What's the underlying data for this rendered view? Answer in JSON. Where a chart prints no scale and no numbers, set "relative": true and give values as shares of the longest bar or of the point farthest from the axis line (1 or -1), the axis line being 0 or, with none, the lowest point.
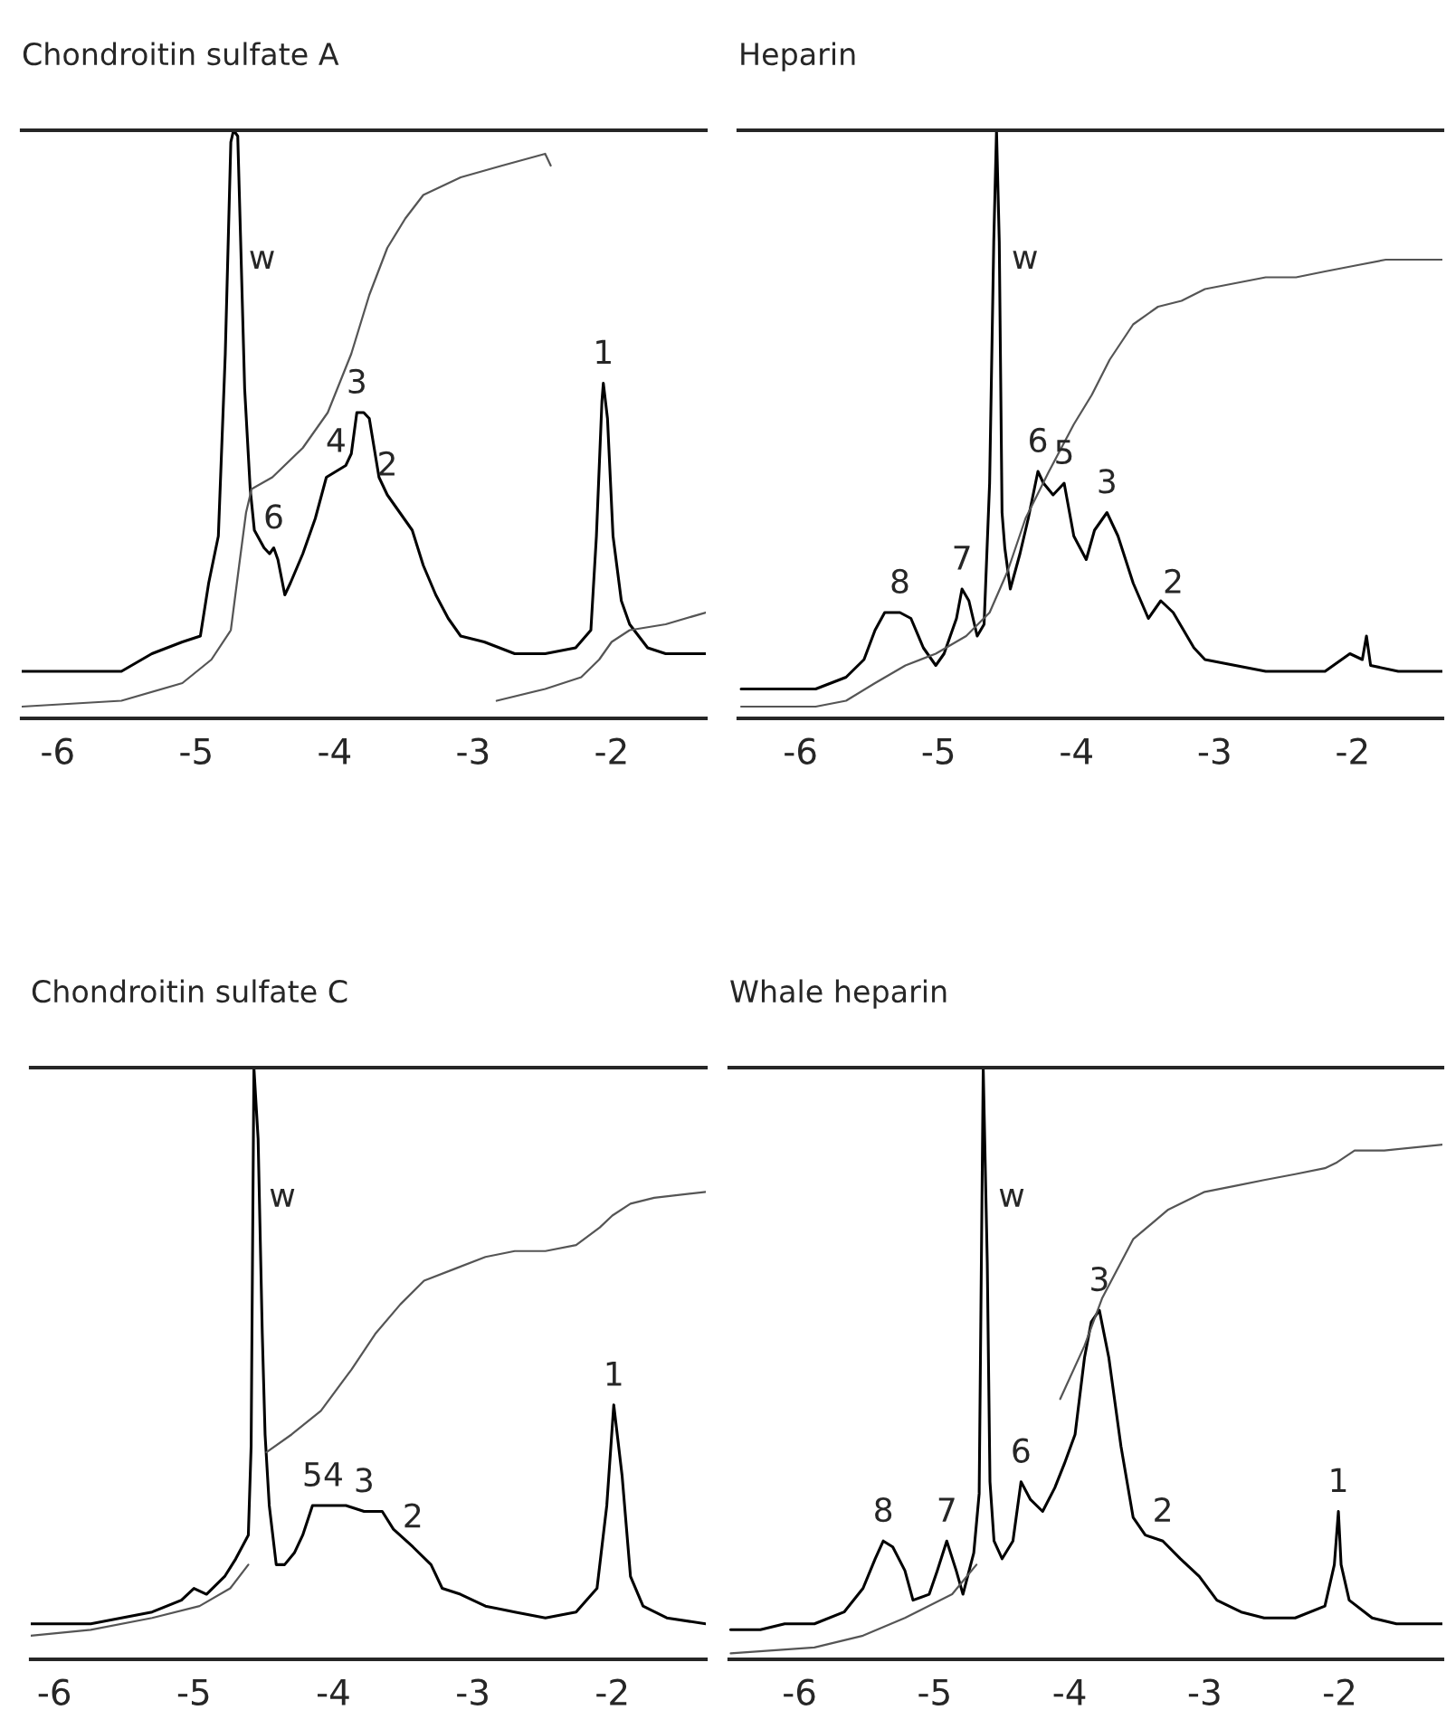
{
  "chart_data": [
    {
      "type": "line",
      "title": "Chondroitin sulfate A",
      "relative": true,
      "tick_labels": "x",
      "xlim": [
        -6.26,
        -1.32
      ],
      "xticks": [
        -6,
        -5,
        -4,
        -3,
        -2
      ],
      "series": [
        {
          "color": "#000000",
          "x": [
            -6.26,
            -5.98,
            -5.76,
            -5.54,
            -5.32,
            -5.1,
            -4.97,
            -4.91,
            -4.84,
            -4.79,
            -4.75,
            -4.73,
            -4.7,
            -4.68,
            -4.65,
            -4.61,
            -4.58,
            -4.51,
            -4.47,
            -4.44,
            -4.41,
            -4.36,
            -4.32,
            -4.23,
            -4.14,
            -4.06,
            -3.99,
            -3.92,
            -3.88,
            -3.84,
            -3.79,
            -3.75,
            -3.68,
            -3.62,
            -3.53,
            -3.44,
            -3.36,
            -3.27,
            -3.18,
            -3.09,
            -2.92,
            -2.7,
            -2.48,
            -2.26,
            -2.15,
            -2.11,
            -2.07,
            -2.06,
            -2.03,
            -1.99,
            -1.93,
            -1.87,
            -1.74,
            -1.61,
            -1.48,
            -1.32
          ],
          "values": [
            0.08,
            0.08,
            0.08,
            0.08,
            0.11,
            0.13,
            0.14,
            0.23,
            0.31,
            0.62,
            0.98,
            1.0,
            0.99,
            0.82,
            0.56,
            0.39,
            0.32,
            0.29,
            0.28,
            0.29,
            0.27,
            0.21,
            0.23,
            0.28,
            0.34,
            0.41,
            0.42,
            0.43,
            0.45,
            0.52,
            0.52,
            0.51,
            0.41,
            0.38,
            0.35,
            0.32,
            0.26,
            0.21,
            0.17,
            0.14,
            0.13,
            0.11,
            0.11,
            0.12,
            0.15,
            0.31,
            0.54,
            0.57,
            0.51,
            0.31,
            0.2,
            0.16,
            0.12,
            0.11,
            0.11,
            0.11
          ]
        },
        {
          "color": "#555555",
          "x": [
            -6.26,
            -5.54,
            -5.1,
            -4.89,
            -4.75,
            -4.69,
            -4.64,
            -4.6,
            -4.45,
            -4.23,
            -4.05,
            -3.88,
            -3.75,
            -3.62,
            -3.49,
            -3.36,
            -3.09,
            -2.79,
            -2.48,
            -2.44
          ],
          "values": [
            0.02,
            0.03,
            0.06,
            0.1,
            0.15,
            0.26,
            0.35,
            0.39,
            0.41,
            0.46,
            0.52,
            0.62,
            0.72,
            0.8,
            0.85,
            0.89,
            0.92,
            0.94,
            0.96,
            0.94
          ]
        },
        {
          "color": "#555555",
          "x": [
            -2.83,
            -2.48,
            -2.22,
            -2.09,
            -2.0,
            -1.87,
            -1.61,
            -1.32
          ],
          "values": [
            0.03,
            0.05,
            0.07,
            0.1,
            0.13,
            0.15,
            0.16,
            0.18
          ]
        }
      ],
      "annotations": [
        "w",
        {
          "text": "6",
          "x": -4.44,
          "y": 0.29
        },
        {
          "text": "4",
          "x": -3.99,
          "y": 0.42
        },
        {
          "text": "3",
          "x": -3.84,
          "y": 0.52
        },
        {
          "text": "2",
          "x": -3.62,
          "y": 0.38
        },
        {
          "text": "1",
          "x": -2.06,
          "y": 0.57
        }
      ]
    },
    {
      "type": "line",
      "title": "Heparin",
      "relative": true,
      "tick_labels": "x",
      "xlim": [
        -6.45,
        -1.35
      ],
      "xticks": [
        -6,
        -5,
        -4,
        -3,
        -2
      ],
      "series": [
        {
          "color": "#000000",
          "x": [
            -6.43,
            -6.11,
            -5.89,
            -5.67,
            -5.54,
            -5.46,
            -5.39,
            -5.28,
            -5.2,
            -5.11,
            -5.02,
            -4.96,
            -4.87,
            -4.83,
            -4.78,
            -4.72,
            -4.67,
            -4.63,
            -4.6,
            -4.58,
            -4.56,
            -4.54,
            -4.52,
            -4.48,
            -4.41,
            -4.35,
            -4.28,
            -4.24,
            -4.17,
            -4.09,
            -4.02,
            -3.93,
            -3.87,
            -3.78,
            -3.7,
            -3.59,
            -3.48,
            -3.39,
            -3.3,
            -3.15,
            -3.07,
            -2.85,
            -2.63,
            -2.41,
            -2.2,
            -2.02,
            -1.93,
            -1.9,
            -1.87,
            -1.67,
            -1.35
          ],
          "values": [
            0.05,
            0.05,
            0.05,
            0.07,
            0.1,
            0.15,
            0.18,
            0.18,
            0.17,
            0.12,
            0.09,
            0.11,
            0.17,
            0.22,
            0.2,
            0.14,
            0.16,
            0.4,
            0.81,
            1.0,
            0.81,
            0.35,
            0.29,
            0.22,
            0.28,
            0.34,
            0.42,
            0.4,
            0.38,
            0.4,
            0.31,
            0.27,
            0.32,
            0.35,
            0.31,
            0.23,
            0.17,
            0.2,
            0.18,
            0.12,
            0.1,
            0.09,
            0.08,
            0.08,
            0.08,
            0.11,
            0.1,
            0.14,
            0.09,
            0.08,
            0.08
          ]
        },
        {
          "color": "#555555",
          "x": [
            -6.43,
            -5.89,
            -5.67,
            -5.46,
            -5.24,
            -5.02,
            -4.8,
            -4.63,
            -4.5,
            -4.37,
            -4.2,
            -4.02,
            -3.89,
            -3.76,
            -3.59,
            -3.41,
            -3.24,
            -3.07,
            -2.85,
            -2.63,
            -2.41,
            -2.2,
            -1.98,
            -1.76,
            -1.35
          ],
          "values": [
            0.02,
            0.02,
            0.03,
            0.06,
            0.09,
            0.11,
            0.14,
            0.18,
            0.25,
            0.34,
            0.42,
            0.5,
            0.55,
            0.61,
            0.67,
            0.7,
            0.71,
            0.73,
            0.74,
            0.75,
            0.75,
            0.76,
            0.77,
            0.78,
            0.78
          ]
        }
      ],
      "annotations": [
        "w",
        {
          "text": "8",
          "x": -5.28,
          "y": 0.18
        },
        {
          "text": "7",
          "x": -4.83,
          "y": 0.22
        },
        {
          "text": "6",
          "x": -4.28,
          "y": 0.42
        },
        {
          "text": "5",
          "x": -4.09,
          "y": 0.4
        },
        {
          "text": "3",
          "x": -3.78,
          "y": 0.35
        },
        {
          "text": "2",
          "x": -3.3,
          "y": 0.18
        }
      ]
    },
    {
      "type": "line",
      "title": "Chondroitin sulfate C",
      "relative": true,
      "tick_labels": "x",
      "xlim": [
        -6.17,
        -1.33
      ],
      "xticks": [
        -6,
        -5,
        -4,
        -3,
        -2
      ],
      "series": [
        {
          "color": "#000000",
          "x": [
            -6.17,
            -5.96,
            -5.74,
            -5.52,
            -5.3,
            -5.09,
            -5.0,
            -4.91,
            -4.78,
            -4.7,
            -4.61,
            -4.59,
            -4.57,
            -4.54,
            -4.51,
            -4.49,
            -4.46,
            -4.41,
            -4.35,
            -4.28,
            -4.22,
            -4.15,
            -4.09,
            -4.0,
            -3.91,
            -3.78,
            -3.65,
            -3.57,
            -3.43,
            -3.3,
            -3.22,
            -3.09,
            -2.91,
            -2.7,
            -2.48,
            -2.26,
            -2.11,
            -2.04,
            -1.99,
            -1.93,
            -1.87,
            -1.78,
            -1.61,
            -1.33
          ],
          "values": [
            0.06,
            0.06,
            0.06,
            0.07,
            0.08,
            0.1,
            0.12,
            0.11,
            0.14,
            0.17,
            0.21,
            0.36,
            1.0,
            0.88,
            0.55,
            0.38,
            0.26,
            0.16,
            0.16,
            0.18,
            0.21,
            0.26,
            0.26,
            0.26,
            0.26,
            0.25,
            0.25,
            0.22,
            0.19,
            0.16,
            0.12,
            0.11,
            0.09,
            0.08,
            0.07,
            0.08,
            0.12,
            0.26,
            0.43,
            0.31,
            0.14,
            0.09,
            0.07,
            0.06
          ]
        },
        {
          "color": "#555555",
          "x": [
            -6.17,
            -5.74,
            -5.3,
            -4.96,
            -4.74,
            -4.61
          ],
          "values": [
            0.04,
            0.05,
            0.07,
            0.09,
            0.12,
            0.16
          ]
        },
        {
          "color": "#555555",
          "x": [
            -4.48,
            -4.3,
            -4.09,
            -3.87,
            -3.7,
            -3.52,
            -3.35,
            -3.13,
            -2.91,
            -2.7,
            -2.48,
            -2.26,
            -2.09,
            -2.0,
            -1.87,
            -1.7,
            -1.33
          ],
          "values": [
            0.35,
            0.38,
            0.42,
            0.49,
            0.55,
            0.6,
            0.64,
            0.66,
            0.68,
            0.69,
            0.69,
            0.7,
            0.73,
            0.75,
            0.77,
            0.78,
            0.79
          ]
        }
      ],
      "annotations": [
        "w",
        {
          "text": "5",
          "x": -4.15,
          "y": 0.26
        },
        {
          "text": "4",
          "x": -4.0,
          "y": 0.26
        },
        {
          "text": "3",
          "x": -3.78,
          "y": 0.25
        },
        {
          "text": "2",
          "x": -3.43,
          "y": 0.19
        },
        {
          "text": "1",
          "x": -1.99,
          "y": 0.43
        }
      ]
    },
    {
      "type": "line",
      "title": "Whale heparin",
      "relative": true,
      "tick_labels": "x",
      "xlim": [
        -6.52,
        -1.24
      ],
      "xticks": [
        -6,
        -5,
        -4,
        -3,
        -2
      ],
      "series": [
        {
          "color": "#000000",
          "x": [
            -6.51,
            -6.29,
            -6.11,
            -5.89,
            -5.67,
            -5.53,
            -5.44,
            -5.38,
            -5.31,
            -5.22,
            -5.16,
            -5.04,
            -4.98,
            -4.91,
            -4.84,
            -4.79,
            -4.71,
            -4.67,
            -4.64,
            -4.61,
            -4.59,
            -4.56,
            -4.5,
            -4.42,
            -4.36,
            -4.29,
            -4.2,
            -4.11,
            -4.04,
            -3.96,
            -3.89,
            -3.84,
            -3.78,
            -3.71,
            -3.62,
            -3.53,
            -3.44,
            -3.31,
            -3.18,
            -3.04,
            -2.91,
            -2.73,
            -2.56,
            -2.33,
            -2.11,
            -2.04,
            -2.01,
            -1.99,
            -1.93,
            -1.76,
            -1.58,
            -1.24
          ],
          "values": [
            0.05,
            0.05,
            0.06,
            0.06,
            0.08,
            0.12,
            0.17,
            0.2,
            0.19,
            0.15,
            0.1,
            0.11,
            0.15,
            0.2,
            0.15,
            0.11,
            0.18,
            0.28,
            1.0,
            0.67,
            0.3,
            0.2,
            0.17,
            0.2,
            0.3,
            0.27,
            0.25,
            0.29,
            0.33,
            0.38,
            0.51,
            0.57,
            0.59,
            0.51,
            0.36,
            0.24,
            0.21,
            0.2,
            0.17,
            0.14,
            0.1,
            0.08,
            0.07,
            0.07,
            0.09,
            0.16,
            0.25,
            0.16,
            0.1,
            0.07,
            0.06,
            0.06
          ]
        },
        {
          "color": "#555555",
          "x": [
            -6.51,
            -5.89,
            -5.53,
            -5.22,
            -4.87,
            -4.69
          ],
          "values": [
            0.01,
            0.02,
            0.04,
            0.07,
            0.11,
            0.16
          ]
        },
        {
          "color": "#555555",
          "x": [
            -4.07,
            -3.89,
            -3.76,
            -3.53,
            -3.27,
            -3.0,
            -2.78,
            -2.56,
            -2.33,
            -2.11,
            -2.02,
            -1.89,
            -1.67,
            -1.24
          ],
          "values": [
            0.44,
            0.53,
            0.61,
            0.71,
            0.76,
            0.79,
            0.8,
            0.81,
            0.82,
            0.83,
            0.84,
            0.86,
            0.86,
            0.87
          ]
        }
      ],
      "annotations": [
        "w",
        {
          "text": "8",
          "x": -5.38,
          "y": 0.2
        },
        {
          "text": "7",
          "x": -4.91,
          "y": 0.2
        },
        {
          "text": "6",
          "x": -4.36,
          "y": 0.3
        },
        {
          "text": "3",
          "x": -3.78,
          "y": 0.59
        },
        {
          "text": "2",
          "x": -3.31,
          "y": 0.2
        },
        {
          "text": "1",
          "x": -2.01,
          "y": 0.25
        }
      ]
    }
  ]
}
